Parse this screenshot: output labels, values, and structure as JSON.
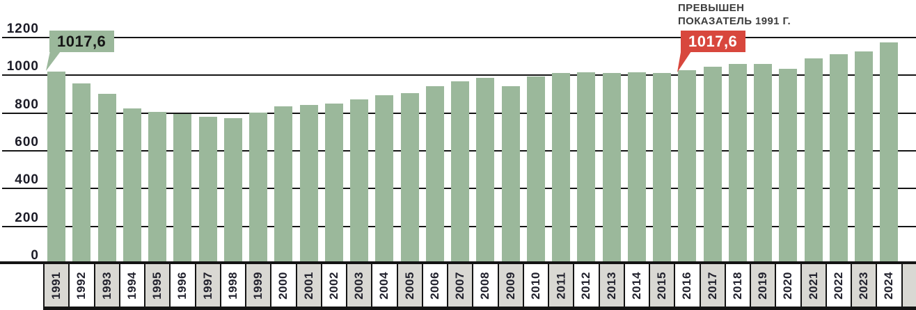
{
  "colors": {
    "bar_green": "#9bb89b",
    "callout_red": "#d8473d",
    "cell_gray": "#d9d8d3",
    "axis_ink": "#141414",
    "tick_ink": "#1b1b26",
    "year_ink": "#20202c",
    "note_ink": "#3d3d3d"
  },
  "annotation": {
    "line1": "ПРЕВЫШЕН",
    "line2": "ПОКАЗАТЕЛЬ 1991 Г."
  },
  "callout_1991": {
    "value": "1017,6"
  },
  "callout_2016": {
    "value": "1017,6"
  },
  "chart_data": {
    "type": "bar",
    "title": "",
    "xlabel": "",
    "ylabel": "",
    "categories": [
      "1991",
      "1992",
      "1993",
      "1994",
      "1995",
      "1996",
      "1997",
      "1998",
      "1999",
      "2000",
      "2001",
      "2002",
      "2003",
      "2004",
      "2005",
      "2006",
      "2007",
      "2008",
      "2009",
      "2010",
      "2011",
      "2012",
      "2013",
      "2014",
      "2015",
      "2016",
      "2017",
      "2018",
      "2019",
      "2020",
      "2021",
      "2022",
      "2023",
      "2024"
    ],
    "values": [
      1017.6,
      955,
      897,
      820,
      801,
      791,
      777,
      768,
      800,
      832,
      839,
      845,
      867,
      889,
      902,
      940,
      963,
      983,
      938,
      989,
      1007,
      1014,
      1008,
      1011,
      1009,
      1025,
      1040,
      1056,
      1056,
      1032,
      1086,
      1107,
      1121,
      1172
    ],
    "ylim": [
      0,
      1200
    ],
    "yticks": [
      0,
      200,
      400,
      600,
      800,
      1000,
      1200
    ],
    "grid": "horizontal",
    "legend": false,
    "bar_color": "#9bb89b",
    "annotations": [
      {
        "target_year": "1991",
        "label": "1017,6",
        "style": "green-callout"
      },
      {
        "target_year": "2016",
        "label": "1017,6",
        "style": "red-callout",
        "note": "ПРЕВЫШЕН ПОКАЗАТЕЛЬ 1991 Г."
      }
    ]
  }
}
